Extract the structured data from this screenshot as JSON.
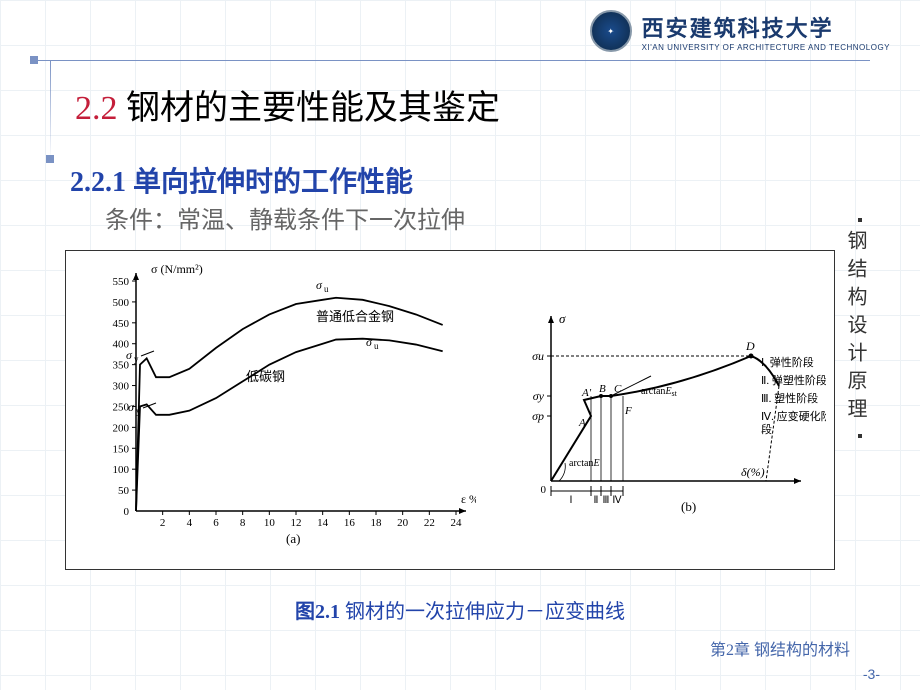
{
  "university": {
    "cn": "西安建筑科技大学",
    "en": "XI'AN UNIVERSITY OF ARCHITECTURE AND TECHNOLOGY"
  },
  "title": {
    "number": "2.2",
    "text": " 钢材的主要性能及其鉴定",
    "number_color": "#c41e3a"
  },
  "subtitle": {
    "number": "2.2.1",
    "text": " 单向拉伸时的工作性能",
    "color": "#2244aa"
  },
  "condition": "条件：常温、静载条件下一次拉伸",
  "sidebar_text": "钢结构设计原理",
  "caption": {
    "fig": "图2.1",
    "text": " 钢材的一次拉伸应力－应变曲线"
  },
  "footer": {
    "chapter": "第2章 钢结构的材料",
    "page": "-3-"
  },
  "chart_a": {
    "type": "line",
    "xlabel": "ε %",
    "ylabel": "σ (N/mm²)",
    "ylim": [
      0,
      550
    ],
    "ytick_step": 50,
    "xlim": [
      0,
      24
    ],
    "xtick_step": 2,
    "label_a": "(a)",
    "gridlines": [
      50,
      100,
      150,
      200,
      250,
      300,
      350,
      400,
      450,
      500,
      550
    ],
    "xticks": [
      2,
      4,
      6,
      8,
      10,
      12,
      14,
      16,
      18,
      20,
      22,
      24
    ],
    "series": [
      {
        "name": "普通低合金钢",
        "label_pos": [
          230,
          60
        ],
        "points": [
          [
            0,
            0
          ],
          [
            0.3,
            350
          ],
          [
            0.8,
            365
          ],
          [
            1.5,
            320
          ],
          [
            2.5,
            320
          ],
          [
            4,
            340
          ],
          [
            6,
            390
          ],
          [
            8,
            435
          ],
          [
            10,
            470
          ],
          [
            12,
            495
          ],
          [
            14,
            505
          ],
          [
            15,
            510
          ],
          [
            17,
            505
          ],
          [
            19,
            490
          ],
          [
            21,
            470
          ],
          [
            23,
            445
          ]
        ],
        "sigma_y": 350,
        "sigma_u": 510,
        "sy_label_pos": [
          40,
          98
        ],
        "su_label_pos": [
          230,
          28
        ]
      },
      {
        "name": "低碳钢",
        "label_pos": [
          160,
          120
        ],
        "points": [
          [
            0,
            0
          ],
          [
            0.3,
            250
          ],
          [
            0.8,
            255
          ],
          [
            1.5,
            230
          ],
          [
            2.5,
            230
          ],
          [
            4,
            240
          ],
          [
            6,
            270
          ],
          [
            8,
            310
          ],
          [
            10,
            350
          ],
          [
            12,
            380
          ],
          [
            14,
            400
          ],
          [
            15,
            410
          ],
          [
            17,
            412
          ],
          [
            19,
            408
          ],
          [
            21,
            398
          ],
          [
            23,
            382
          ]
        ],
        "sigma_y": 250,
        "sigma_u": 412,
        "sy_label_pos": [
          42,
          150
        ],
        "su_label_pos": [
          280,
          85
        ]
      }
    ],
    "colors": {
      "axis": "#000",
      "curve": "#000",
      "text": "#000"
    }
  },
  "chart_b": {
    "type": "line",
    "xlabel": "δ(%)",
    "ylabel": "σ",
    "label_b": "(b)",
    "points": {
      "A": [
        40,
        105
      ],
      "Aprime": [
        33,
        89
      ],
      "B": [
        50,
        85
      ],
      "C": [
        60,
        85
      ],
      "F": [
        72,
        98
      ],
      "D": [
        200,
        45
      ]
    },
    "y_marks": [
      {
        "label": "σu",
        "y": 45
      },
      {
        "label": "σy",
        "y": 85
      },
      {
        "label": "σp",
        "y": 105
      }
    ],
    "stages": [
      {
        "num": "Ⅰ",
        "text": ". 弹性阶段"
      },
      {
        "num": "Ⅱ",
        "text": ". 弹塑性阶段"
      },
      {
        "num": "Ⅲ",
        "text": ". 塑性阶段"
      },
      {
        "num": "Ⅳ",
        "text": ". 应变硬化阶\n    段"
      }
    ],
    "arctan_labels": [
      "arctanE",
      "arctanEst"
    ],
    "roman_segs": [
      "Ⅰ",
      "Ⅱ",
      "Ⅲ",
      "Ⅳ"
    ],
    "colors": {
      "axis": "#000",
      "curve": "#000",
      "text": "#000"
    }
  }
}
